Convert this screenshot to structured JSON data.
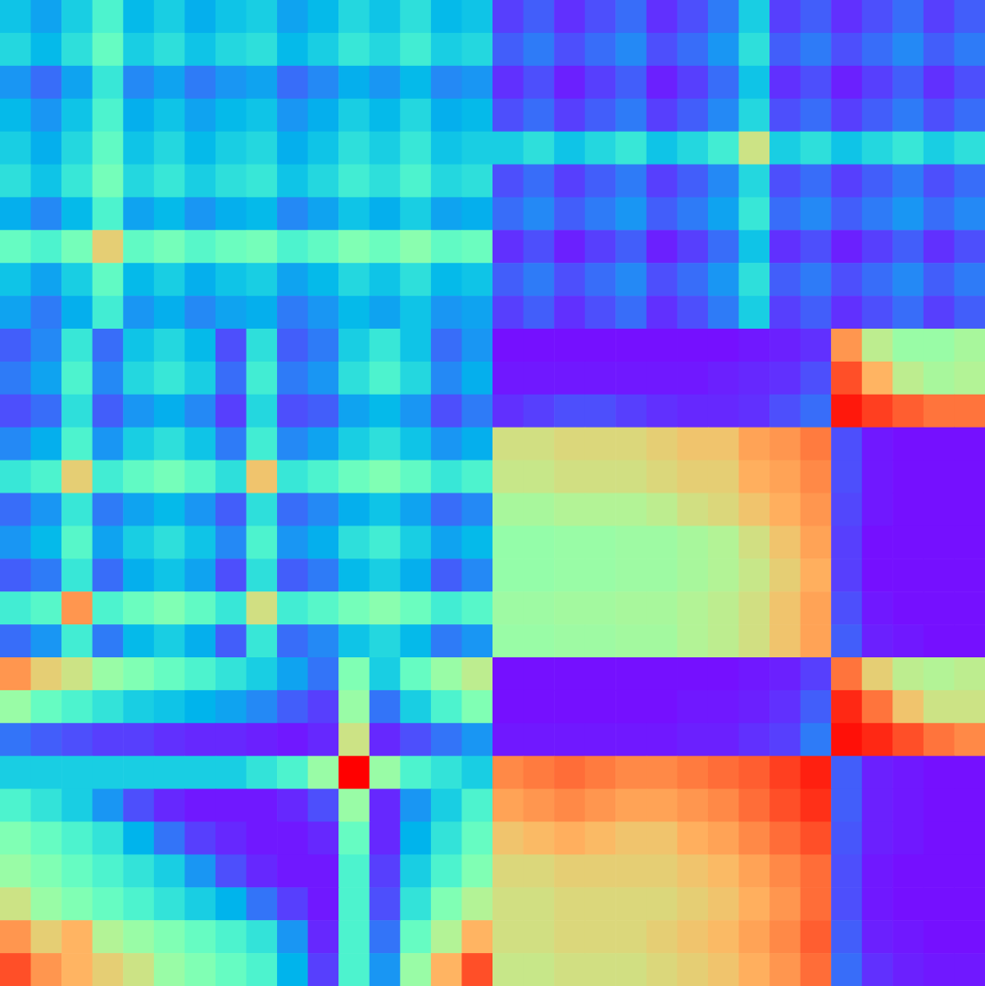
{
  "chart_data": [
    {
      "type": "heatmap",
      "tick_labels": false,
      "zlim": [
        0,
        1
      ],
      "cells": [
        [
          0.28,
          0.22,
          0.3,
          0.4,
          0.26,
          0.3,
          0.24,
          0.28,
          0.3,
          0.22,
          0.26,
          0.32,
          0.28,
          0.34,
          0.26,
          0.28
        ],
        [
          0.32,
          0.26,
          0.34,
          0.45,
          0.3,
          0.34,
          0.28,
          0.32,
          0.34,
          0.26,
          0.3,
          0.36,
          0.32,
          0.38,
          0.3,
          0.32
        ],
        [
          0.2,
          0.14,
          0.22,
          0.36,
          0.18,
          0.22,
          0.16,
          0.2,
          0.22,
          0.14,
          0.18,
          0.24,
          0.2,
          0.26,
          0.18,
          0.2
        ],
        [
          0.26,
          0.2,
          0.28,
          0.4,
          0.24,
          0.28,
          0.22,
          0.26,
          0.28,
          0.2,
          0.24,
          0.3,
          0.26,
          0.32,
          0.24,
          0.26
        ],
        [
          0.3,
          0.24,
          0.32,
          0.44,
          0.28,
          0.32,
          0.26,
          0.3,
          0.32,
          0.24,
          0.28,
          0.34,
          0.3,
          0.36,
          0.28,
          0.3
        ],
        [
          0.34,
          0.28,
          0.36,
          0.48,
          0.32,
          0.36,
          0.3,
          0.34,
          0.36,
          0.28,
          0.32,
          0.38,
          0.34,
          0.4,
          0.32,
          0.34
        ],
        [
          0.24,
          0.18,
          0.26,
          0.4,
          0.22,
          0.26,
          0.2,
          0.24,
          0.26,
          0.18,
          0.22,
          0.28,
          0.24,
          0.3,
          0.22,
          0.24
        ],
        [
          0.45,
          0.4,
          0.48,
          0.7,
          0.44,
          0.48,
          0.42,
          0.46,
          0.48,
          0.4,
          0.44,
          0.5,
          0.46,
          0.52,
          0.44,
          0.46
        ],
        [
          0.28,
          0.22,
          0.3,
          0.44,
          0.26,
          0.3,
          0.24,
          0.28,
          0.3,
          0.22,
          0.26,
          0.32,
          0.28,
          0.34,
          0.26,
          0.28
        ],
        [
          0.22,
          0.16,
          0.24,
          0.38,
          0.2,
          0.24,
          0.18,
          0.22,
          0.24,
          0.16,
          0.2,
          0.26,
          0.22,
          0.28,
          0.2,
          0.22
        ]
      ]
    },
    {
      "type": "heatmap",
      "tick_labels": false,
      "zlim": [
        0,
        1
      ],
      "cells": [
        [
          0.08,
          0.12,
          0.06,
          0.1,
          0.14,
          0.06,
          0.1,
          0.16,
          0.3,
          0.08,
          0.12,
          0.06,
          0.1,
          0.14,
          0.08,
          0.12
        ],
        [
          0.12,
          0.16,
          0.1,
          0.14,
          0.18,
          0.1,
          0.14,
          0.2,
          0.34,
          0.12,
          0.16,
          0.1,
          0.14,
          0.18,
          0.12,
          0.16
        ],
        [
          0.06,
          0.1,
          0.04,
          0.08,
          0.12,
          0.04,
          0.08,
          0.14,
          0.28,
          0.06,
          0.1,
          0.04,
          0.08,
          0.12,
          0.06,
          0.1
        ],
        [
          0.1,
          0.14,
          0.08,
          0.12,
          0.16,
          0.08,
          0.12,
          0.18,
          0.32,
          0.1,
          0.14,
          0.08,
          0.12,
          0.16,
          0.1,
          0.14
        ],
        [
          0.3,
          0.34,
          0.28,
          0.32,
          0.36,
          0.28,
          0.32,
          0.38,
          0.65,
          0.3,
          0.34,
          0.28,
          0.32,
          0.36,
          0.3,
          0.34
        ],
        [
          0.1,
          0.14,
          0.08,
          0.12,
          0.16,
          0.08,
          0.12,
          0.18,
          0.32,
          0.1,
          0.14,
          0.08,
          0.12,
          0.16,
          0.1,
          0.14
        ],
        [
          0.14,
          0.18,
          0.12,
          0.16,
          0.2,
          0.12,
          0.16,
          0.22,
          0.36,
          0.14,
          0.18,
          0.12,
          0.16,
          0.2,
          0.14,
          0.18
        ],
        [
          0.06,
          0.1,
          0.04,
          0.08,
          0.12,
          0.04,
          0.08,
          0.14,
          0.28,
          0.06,
          0.1,
          0.04,
          0.08,
          0.12,
          0.06,
          0.1
        ],
        [
          0.12,
          0.16,
          0.1,
          0.14,
          0.18,
          0.1,
          0.14,
          0.2,
          0.34,
          0.12,
          0.16,
          0.1,
          0.14,
          0.18,
          0.12,
          0.16
        ],
        [
          0.08,
          0.12,
          0.06,
          0.1,
          0.14,
          0.06,
          0.1,
          0.16,
          0.3,
          0.08,
          0.12,
          0.06,
          0.1,
          0.14,
          0.08,
          0.12
        ]
      ]
    },
    {
      "type": "heatmap",
      "tick_labels": false,
      "zlim": [
        0,
        1
      ],
      "cells": [
        [
          0.12,
          0.18,
          0.36,
          0.14,
          0.28,
          0.32,
          0.26,
          0.1,
          0.34,
          0.12,
          0.16,
          0.3,
          0.36,
          0.28,
          0.14,
          0.2
        ],
        [
          0.16,
          0.22,
          0.4,
          0.18,
          0.32,
          0.36,
          0.3,
          0.14,
          0.38,
          0.16,
          0.2,
          0.34,
          0.4,
          0.32,
          0.18,
          0.24
        ],
        [
          0.1,
          0.14,
          0.34,
          0.12,
          0.2,
          0.24,
          0.18,
          0.08,
          0.32,
          0.1,
          0.12,
          0.22,
          0.26,
          0.2,
          0.1,
          0.16
        ],
        [
          0.18,
          0.24,
          0.4,
          0.2,
          0.3,
          0.34,
          0.28,
          0.16,
          0.38,
          0.18,
          0.22,
          0.3,
          0.34,
          0.28,
          0.2,
          0.24
        ],
        [
          0.36,
          0.4,
          0.7,
          0.38,
          0.44,
          0.48,
          0.42,
          0.34,
          0.72,
          0.36,
          0.4,
          0.46,
          0.5,
          0.44,
          0.36,
          0.4
        ],
        [
          0.14,
          0.2,
          0.36,
          0.16,
          0.22,
          0.26,
          0.2,
          0.12,
          0.34,
          0.14,
          0.18,
          0.24,
          0.28,
          0.22,
          0.14,
          0.18
        ],
        [
          0.2,
          0.26,
          0.42,
          0.22,
          0.3,
          0.34,
          0.28,
          0.18,
          0.4,
          0.2,
          0.24,
          0.34,
          0.38,
          0.3,
          0.22,
          0.26
        ],
        [
          0.12,
          0.16,
          0.36,
          0.14,
          0.24,
          0.28,
          0.22,
          0.1,
          0.34,
          0.12,
          0.16,
          0.26,
          0.3,
          0.24,
          0.12,
          0.18
        ],
        [
          0.38,
          0.42,
          0.8,
          0.4,
          0.46,
          0.5,
          0.44,
          0.36,
          0.66,
          0.38,
          0.42,
          0.48,
          0.52,
          0.46,
          0.38,
          0.42
        ],
        [
          0.14,
          0.2,
          0.38,
          0.16,
          0.26,
          0.3,
          0.24,
          0.12,
          0.36,
          0.14,
          0.18,
          0.28,
          0.32,
          0.26,
          0.16,
          0.2
        ]
      ]
    },
    {
      "type": "heatmap",
      "tick_labels": false,
      "zlim": [
        0,
        1
      ],
      "cells": [
        [
          0.02,
          0.02,
          0.02,
          0.02,
          0.02,
          0.02,
          0.02,
          0.02,
          0.03,
          0.04,
          0.06,
          0.8,
          0.62,
          0.55,
          0.55,
          0.58
        ],
        [
          0.03,
          0.03,
          0.03,
          0.03,
          0.03,
          0.03,
          0.03,
          0.04,
          0.05,
          0.06,
          0.1,
          0.9,
          0.75,
          0.62,
          0.58,
          0.6
        ],
        [
          0.06,
          0.08,
          0.1,
          0.1,
          0.08,
          0.06,
          0.05,
          0.05,
          0.06,
          0.1,
          0.14,
          0.97,
          0.92,
          0.88,
          0.85,
          0.85
        ],
        [
          0.66,
          0.66,
          0.68,
          0.68,
          0.68,
          0.7,
          0.72,
          0.72,
          0.78,
          0.8,
          0.84,
          0.1,
          0.03,
          0.02,
          0.02,
          0.02
        ],
        [
          0.64,
          0.64,
          0.66,
          0.66,
          0.66,
          0.68,
          0.7,
          0.7,
          0.76,
          0.78,
          0.82,
          0.1,
          0.03,
          0.02,
          0.02,
          0.02
        ],
        [
          0.58,
          0.58,
          0.6,
          0.6,
          0.6,
          0.62,
          0.66,
          0.68,
          0.72,
          0.76,
          0.8,
          0.09,
          0.03,
          0.02,
          0.02,
          0.02
        ],
        [
          0.54,
          0.54,
          0.55,
          0.55,
          0.56,
          0.56,
          0.58,
          0.6,
          0.66,
          0.72,
          0.78,
          0.08,
          0.02,
          0.02,
          0.02,
          0.02
        ],
        [
          0.54,
          0.54,
          0.55,
          0.55,
          0.56,
          0.56,
          0.58,
          0.6,
          0.64,
          0.7,
          0.76,
          0.08,
          0.02,
          0.02,
          0.02,
          0.02
        ],
        [
          0.56,
          0.56,
          0.57,
          0.57,
          0.58,
          0.58,
          0.6,
          0.62,
          0.66,
          0.72,
          0.78,
          0.1,
          0.03,
          0.02,
          0.02,
          0.02
        ],
        [
          0.55,
          0.55,
          0.56,
          0.56,
          0.57,
          0.57,
          0.6,
          0.62,
          0.66,
          0.72,
          0.78,
          0.12,
          0.04,
          0.03,
          0.02,
          0.02
        ]
      ]
    },
    {
      "type": "heatmap",
      "tick_labels": false,
      "zlim": [
        0,
        1
      ],
      "cells": [
        [
          0.8,
          0.7,
          0.65,
          0.55,
          0.5,
          0.45,
          0.4,
          0.35,
          0.3,
          0.22,
          0.15,
          0.5,
          0.3,
          0.45,
          0.55,
          0.62
        ],
        [
          0.55,
          0.45,
          0.4,
          0.35,
          0.3,
          0.28,
          0.25,
          0.22,
          0.18,
          0.12,
          0.08,
          0.55,
          0.15,
          0.3,
          0.4,
          0.5
        ],
        [
          0.15,
          0.12,
          0.1,
          0.08,
          0.08,
          0.06,
          0.05,
          0.05,
          0.04,
          0.03,
          0.05,
          0.65,
          0.05,
          0.1,
          0.15,
          0.2
        ],
        [
          0.3,
          0.3,
          0.3,
          0.3,
          0.3,
          0.3,
          0.3,
          0.3,
          0.35,
          0.4,
          0.55,
          1.0,
          0.55,
          0.4,
          0.35,
          0.3
        ],
        [
          0.4,
          0.35,
          0.3,
          0.2,
          0.1,
          0.05,
          0.03,
          0.03,
          0.03,
          0.05,
          0.1,
          0.55,
          0.05,
          0.2,
          0.3,
          0.4
        ],
        [
          0.5,
          0.45,
          0.4,
          0.35,
          0.25,
          0.15,
          0.08,
          0.05,
          0.03,
          0.03,
          0.05,
          0.45,
          0.05,
          0.25,
          0.35,
          0.45
        ],
        [
          0.55,
          0.5,
          0.45,
          0.4,
          0.35,
          0.3,
          0.2,
          0.1,
          0.05,
          0.03,
          0.03,
          0.4,
          0.08,
          0.3,
          0.4,
          0.5
        ],
        [
          0.65,
          0.55,
          0.5,
          0.45,
          0.4,
          0.35,
          0.3,
          0.25,
          0.15,
          0.08,
          0.03,
          0.4,
          0.1,
          0.35,
          0.5,
          0.6
        ],
        [
          0.8,
          0.7,
          0.75,
          0.6,
          0.55,
          0.5,
          0.45,
          0.4,
          0.35,
          0.2,
          0.05,
          0.4,
          0.15,
          0.45,
          0.6,
          0.75
        ],
        [
          0.9,
          0.8,
          0.75,
          0.7,
          0.65,
          0.55,
          0.5,
          0.45,
          0.4,
          0.25,
          0.08,
          0.4,
          0.2,
          0.55,
          0.75,
          0.9
        ]
      ]
    },
    {
      "type": "heatmap",
      "tick_labels": false,
      "zlim": [
        0,
        1
      ],
      "cells": [
        [
          0.02,
          0.02,
          0.02,
          0.02,
          0.02,
          0.02,
          0.02,
          0.02,
          0.03,
          0.04,
          0.08,
          0.85,
          0.7,
          0.62,
          0.6,
          0.62
        ],
        [
          0.02,
          0.02,
          0.02,
          0.02,
          0.02,
          0.02,
          0.03,
          0.03,
          0.04,
          0.06,
          0.12,
          0.95,
          0.85,
          0.72,
          0.65,
          0.65
        ],
        [
          0.03,
          0.03,
          0.03,
          0.03,
          0.03,
          0.03,
          0.04,
          0.04,
          0.06,
          0.08,
          0.16,
          0.98,
          0.95,
          0.9,
          0.85,
          0.82
        ],
        [
          0.82,
          0.84,
          0.86,
          0.84,
          0.82,
          0.82,
          0.84,
          0.86,
          0.88,
          0.92,
          0.96,
          0.12,
          0.04,
          0.03,
          0.02,
          0.02
        ],
        [
          0.78,
          0.8,
          0.82,
          0.8,
          0.78,
          0.78,
          0.8,
          0.82,
          0.86,
          0.9,
          0.94,
          0.12,
          0.04,
          0.03,
          0.02,
          0.02
        ],
        [
          0.72,
          0.74,
          0.76,
          0.74,
          0.72,
          0.72,
          0.76,
          0.78,
          0.82,
          0.86,
          0.9,
          0.11,
          0.04,
          0.03,
          0.02,
          0.02
        ],
        [
          0.68,
          0.68,
          0.7,
          0.7,
          0.7,
          0.7,
          0.72,
          0.74,
          0.78,
          0.82,
          0.86,
          0.1,
          0.03,
          0.02,
          0.02,
          0.02
        ],
        [
          0.66,
          0.66,
          0.68,
          0.68,
          0.68,
          0.68,
          0.7,
          0.72,
          0.76,
          0.8,
          0.86,
          0.1,
          0.03,
          0.02,
          0.02,
          0.02
        ],
        [
          0.66,
          0.66,
          0.68,
          0.68,
          0.68,
          0.7,
          0.72,
          0.74,
          0.78,
          0.82,
          0.88,
          0.12,
          0.04,
          0.03,
          0.02,
          0.02
        ],
        [
          0.64,
          0.64,
          0.66,
          0.66,
          0.66,
          0.68,
          0.7,
          0.72,
          0.76,
          0.8,
          0.86,
          0.14,
          0.06,
          0.04,
          0.03,
          0.03
        ]
      ]
    }
  ]
}
